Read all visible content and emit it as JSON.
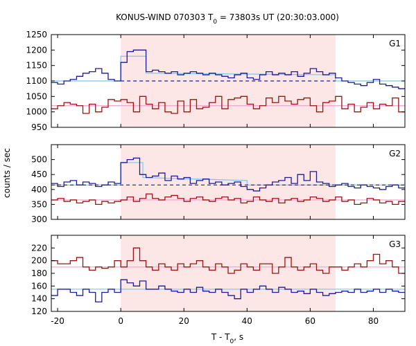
{
  "chart_data": {
    "type": "line",
    "title": "KONUS-WIND 070303 T",
    "title_sub": "0",
    "title_rest": " = 73803s UT (20:30:03.000)",
    "xlabel": "T - T",
    "xlabel_sub": "0",
    "xlabel_rest": ", s",
    "ylabel": "counts / sec",
    "xlim": [
      -22,
      90
    ],
    "x_ticks": [
      -20,
      0,
      20,
      40,
      60,
      80
    ],
    "x_tick_labels": [
      "-20",
      "0",
      "20",
      "40",
      "60",
      "80"
    ],
    "shaded_interval": {
      "start": 0,
      "end": 68,
      "color": "#fde6e6"
    },
    "colors": {
      "blue": "#1a1a9c",
      "red": "#a01010",
      "fit_blue": "#78c8ee",
      "fit_red": "#f2a0d0",
      "bg_blue_dashed": "#1a1a9c"
    },
    "panels": [
      {
        "name": "G1",
        "ylim": [
          950,
          1250
        ],
        "y_ticks": [
          950,
          1000,
          1050,
          1100,
          1150,
          1200,
          1250
        ],
        "y_tick_labels": [
          "950",
          "1000",
          "1050",
          "1100",
          "1150",
          "1200",
          "1250"
        ],
        "series": [
          {
            "color": "blue",
            "edges": [
              -22,
              -20,
              -18,
              -16,
              -14,
              -12,
              -10,
              -8,
              -6,
              -4,
              -2,
              0,
              2,
              4,
              6,
              8,
              10,
              12,
              14,
              16,
              18,
              20,
              22,
              24,
              26,
              28,
              30,
              32,
              34,
              36,
              38,
              40,
              42,
              44,
              46,
              48,
              50,
              52,
              54,
              56,
              58,
              60,
              62,
              64,
              66,
              68,
              70,
              72,
              74,
              76,
              78,
              80,
              82,
              84,
              86,
              88,
              90
            ],
            "values": [
              1095,
              1090,
              1100,
              1105,
              1115,
              1125,
              1130,
              1140,
              1125,
              1105,
              1100,
              1160,
              1195,
              1200,
              1200,
              1130,
              1135,
              1130,
              1125,
              1130,
              1120,
              1125,
              1130,
              1125,
              1120,
              1125,
              1120,
              1115,
              1110,
              1120,
              1125,
              1110,
              1105,
              1120,
              1130,
              1120,
              1125,
              1120,
              1130,
              1115,
              1125,
              1140,
              1130,
              1120,
              1125,
              1110,
              1100,
              1095,
              1090,
              1085,
              1095,
              1105,
              1090,
              1085,
              1080,
              1075
            ]
          },
          {
            "color": "red",
            "edges": [
              -22,
              -20,
              -18,
              -16,
              -14,
              -12,
              -10,
              -8,
              -6,
              -4,
              -2,
              0,
              2,
              4,
              6,
              8,
              10,
              12,
              14,
              16,
              18,
              20,
              22,
              24,
              26,
              28,
              30,
              32,
              34,
              36,
              38,
              40,
              42,
              44,
              46,
              48,
              50,
              52,
              54,
              56,
              58,
              60,
              62,
              64,
              66,
              68,
              70,
              72,
              74,
              76,
              78,
              80,
              82,
              84,
              86,
              88,
              90
            ],
            "values": [
              1010,
              1020,
              1030,
              1025,
              1020,
              995,
              1025,
              1000,
              1015,
              1040,
              1035,
              1040,
              1030,
              1000,
              1050,
              1025,
              1010,
              1030,
              1000,
              995,
              1035,
              1000,
              1040,
              1010,
              1015,
              1030,
              1050,
              1010,
              1040,
              1045,
              1050,
              1025,
              1010,
              1020,
              1045,
              1030,
              1050,
              1035,
              1025,
              1040,
              1045,
              1020,
              1000,
              1030,
              1035,
              1050,
              1010,
              1025,
              1000,
              1015,
              1030,
              1010,
              1025,
              1020,
              1045,
              1000
            ]
          }
        ],
        "fits": [
          {
            "color": "fit_blue",
            "points": [
              [
                -22,
                1100
              ],
              [
                0,
                1100
              ],
              [
                0,
                1180
              ],
              [
                8,
                1180
              ],
              [
                8,
                1125
              ],
              [
                68,
                1120
              ],
              [
                68,
                1100
              ],
              [
                90,
                1100
              ]
            ]
          },
          {
            "color": "fit_red",
            "points": [
              [
                -22,
                1020
              ],
              [
                90,
                1020
              ]
            ]
          }
        ],
        "dashed": [
          {
            "color": "bg_blue_dashed",
            "points": [
              [
                0,
                1100
              ],
              [
                68,
                1100
              ]
            ]
          }
        ]
      },
      {
        "name": "G2",
        "ylim": [
          300,
          550
        ],
        "y_ticks": [
          300,
          350,
          400,
          450,
          500
        ],
        "y_tick_labels": [
          "300",
          "350",
          "400",
          "450",
          "500"
        ],
        "series": [
          {
            "color": "blue",
            "edges": [
              -22,
              -20,
              -18,
              -16,
              -14,
              -12,
              -10,
              -8,
              -6,
              -4,
              -2,
              0,
              2,
              4,
              6,
              8,
              10,
              12,
              14,
              16,
              18,
              20,
              22,
              24,
              26,
              28,
              30,
              32,
              34,
              36,
              38,
              40,
              42,
              44,
              46,
              48,
              50,
              52,
              54,
              56,
              58,
              60,
              62,
              64,
              66,
              68,
              70,
              72,
              74,
              76,
              78,
              80,
              82,
              84,
              86,
              88,
              90
            ],
            "values": [
              420,
              410,
              425,
              430,
              415,
              425,
              420,
              410,
              415,
              425,
              420,
              490,
              500,
              505,
              450,
              440,
              445,
              455,
              430,
              445,
              435,
              440,
              420,
              430,
              435,
              420,
              425,
              415,
              420,
              425,
              410,
              400,
              395,
              405,
              415,
              425,
              430,
              440,
              420,
              450,
              430,
              460,
              425,
              420,
              410,
              415,
              420,
              410,
              405,
              415,
              410,
              405,
              400,
              410,
              415,
              405
            ]
          },
          {
            "color": "red",
            "edges": [
              -22,
              -20,
              -18,
              -16,
              -14,
              -12,
              -10,
              -8,
              -6,
              -4,
              -2,
              0,
              2,
              4,
              6,
              8,
              10,
              12,
              14,
              16,
              18,
              20,
              22,
              24,
              26,
              28,
              30,
              32,
              34,
              36,
              38,
              40,
              42,
              44,
              46,
              48,
              50,
              52,
              54,
              56,
              58,
              60,
              62,
              64,
              66,
              68,
              70,
              72,
              74,
              76,
              78,
              80,
              82,
              84,
              86,
              88,
              90
            ],
            "values": [
              365,
              370,
              360,
              365,
              355,
              360,
              365,
              350,
              360,
              355,
              360,
              365,
              375,
              360,
              370,
              385,
              370,
              365,
              375,
              380,
              370,
              360,
              370,
              375,
              365,
              360,
              370,
              375,
              365,
              370,
              355,
              360,
              375,
              365,
              360,
              370,
              355,
              365,
              370,
              360,
              365,
              375,
              370,
              360,
              365,
              375,
              360,
              365,
              350,
              355,
              370,
              365,
              355,
              360,
              350,
              360
            ]
          }
        ],
        "fits": [
          {
            "color": "fit_blue",
            "points": [
              [
                -22,
                415
              ],
              [
                0,
                415
              ],
              [
                0,
                490
              ],
              [
                7,
                490
              ],
              [
                7,
                440
              ],
              [
                40,
                430
              ],
              [
                40,
                415
              ],
              [
                90,
                415
              ]
            ]
          },
          {
            "color": "fit_red",
            "points": [
              [
                -22,
                365
              ],
              [
                90,
                365
              ]
            ]
          }
        ],
        "dashed": [
          {
            "color": "bg_blue_dashed",
            "points": [
              [
                -22,
                415
              ],
              [
                90,
                415
              ]
            ]
          }
        ]
      },
      {
        "name": "G3",
        "ylim": [
          120,
          240
        ],
        "y_ticks": [
          120,
          140,
          160,
          180,
          200,
          220
        ],
        "y_tick_labels": [
          "120",
          "140",
          "160",
          "180",
          "200",
          "220"
        ],
        "series": [
          {
            "color": "red",
            "edges": [
              -22,
              -20,
              -18,
              -16,
              -14,
              -12,
              -10,
              -8,
              -6,
              -4,
              -2,
              0,
              2,
              4,
              6,
              8,
              10,
              12,
              14,
              16,
              18,
              20,
              22,
              24,
              26,
              28,
              30,
              32,
              34,
              36,
              38,
              40,
              42,
              44,
              46,
              48,
              50,
              52,
              54,
              56,
              58,
              60,
              62,
              64,
              66,
              68,
              70,
              72,
              74,
              76,
              78,
              80,
              82,
              84,
              86,
              88,
              90
            ],
            "values": [
              200,
              195,
              195,
              200,
              205,
              190,
              185,
              190,
              188,
              190,
              200,
              190,
              200,
              220,
              200,
              190,
              185,
              195,
              190,
              185,
              195,
              190,
              195,
              200,
              190,
              185,
              195,
              190,
              180,
              185,
              195,
              190,
              185,
              195,
              195,
              180,
              190,
              205,
              190,
              185,
              190,
              195,
              185,
              180,
              190,
              190,
              185,
              190,
              195,
              190,
              200,
              210,
              195,
              200,
              190,
              180
            ]
          },
          {
            "color": "blue",
            "edges": [
              -22,
              -20,
              -18,
              -16,
              -14,
              -12,
              -10,
              -8,
              -6,
              -4,
              -2,
              0,
              2,
              4,
              6,
              8,
              10,
              12,
              14,
              16,
              18,
              20,
              22,
              24,
              26,
              28,
              30,
              32,
              34,
              36,
              38,
              40,
              42,
              44,
              46,
              48,
              50,
              52,
              54,
              56,
              58,
              60,
              62,
              64,
              66,
              68,
              70,
              72,
              74,
              76,
              78,
              80,
              82,
              84,
              86,
              88,
              90
            ],
            "values": [
              145,
              155,
              155,
              150,
              145,
              155,
              150,
              135,
              150,
              155,
              150,
              170,
              165,
              160,
              168,
              155,
              155,
              160,
              155,
              152,
              150,
              155,
              150,
              158,
              152,
              150,
              155,
              150,
              145,
              140,
              155,
              150,
              155,
              160,
              155,
              150,
              158,
              155,
              150,
              152,
              148,
              155,
              150,
              145,
              148,
              150,
              152,
              150,
              155,
              150,
              152,
              155,
              150,
              155,
              152,
              150
            ]
          }
        ],
        "fits": [
          {
            "color": "fit_blue",
            "points": [
              [
                -22,
                155
              ],
              [
                90,
                155
              ]
            ]
          },
          {
            "color": "fit_red",
            "points": [
              [
                -22,
                190
              ],
              [
                90,
                190
              ]
            ]
          }
        ],
        "dashed": []
      }
    ]
  }
}
